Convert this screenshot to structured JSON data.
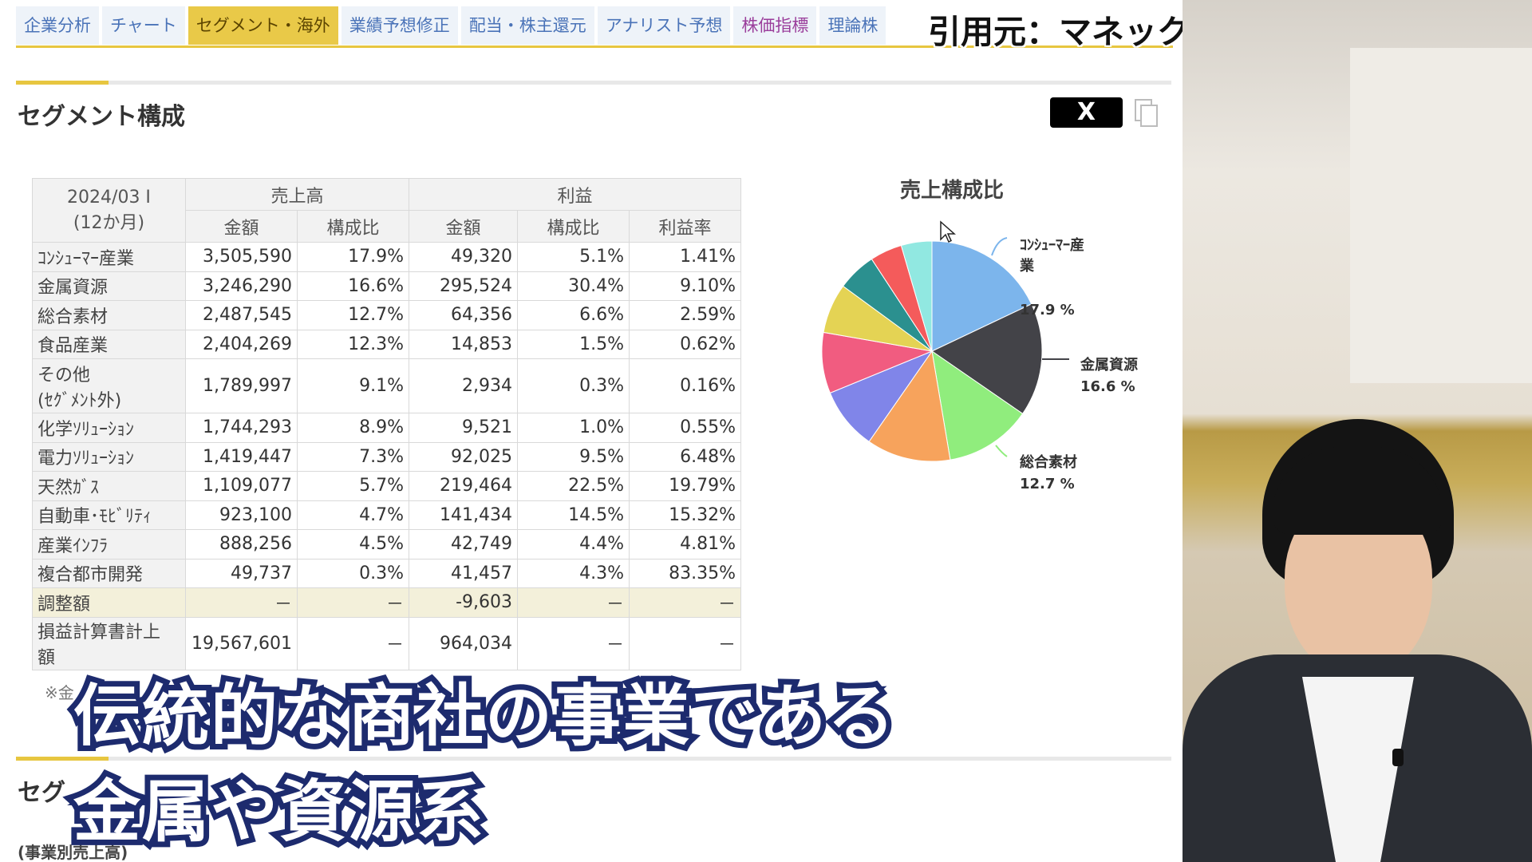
{
  "tabs": [
    {
      "label": "企業分析",
      "active": false
    },
    {
      "label": "チャート",
      "active": false
    },
    {
      "label": "セグメント・海外",
      "active": true
    },
    {
      "label": "業績予想修正",
      "active": false
    },
    {
      "label": "配当・株主還元",
      "active": false
    },
    {
      "label": "アナリスト予想",
      "active": false
    },
    {
      "label": "株価指標",
      "active": false
    },
    {
      "label": "理論株",
      "active": false
    }
  ],
  "source_credit": "引用元：マネックス証券（monex.co.jp）",
  "section": {
    "title": "セグメント構成",
    "share_label": "X",
    "copy_icon": "copy-icon"
  },
  "table": {
    "period_line1": "2024/03 I",
    "period_line2": "(12か月)",
    "group_sales": "売上高",
    "group_profit": "利益",
    "col_amount": "金額",
    "col_ratio": "構成比",
    "col_margin": "利益率",
    "rows": [
      {
        "name": "ｺﾝｼｭｰﾏｰ産業",
        "sales": "3,505,590",
        "sales_ratio": "17.9%",
        "profit": "49,320",
        "profit_ratio": "5.1%",
        "margin": "1.41%"
      },
      {
        "name": "金属資源",
        "sales": "3,246,290",
        "sales_ratio": "16.6%",
        "profit": "295,524",
        "profit_ratio": "30.4%",
        "margin": "9.10%"
      },
      {
        "name": "総合素材",
        "sales": "2,487,545",
        "sales_ratio": "12.7%",
        "profit": "64,356",
        "profit_ratio": "6.6%",
        "margin": "2.59%"
      },
      {
        "name": "食品産業",
        "sales": "2,404,269",
        "sales_ratio": "12.3%",
        "profit": "14,853",
        "profit_ratio": "1.5%",
        "margin": "0.62%"
      },
      {
        "name": "その他",
        "name2": "(ｾｸﾞﾒﾝﾄ外)",
        "sales": "1,789,997",
        "sales_ratio": "9.1%",
        "profit": "2,934",
        "profit_ratio": "0.3%",
        "margin": "0.16%"
      },
      {
        "name": "化学ｿﾘｭｰｼｮﾝ",
        "sales": "1,744,293",
        "sales_ratio": "8.9%",
        "profit": "9,521",
        "profit_ratio": "1.0%",
        "margin": "0.55%"
      },
      {
        "name": "電力ｿﾘｭｰｼｮﾝ",
        "sales": "1,419,447",
        "sales_ratio": "7.3%",
        "profit": "92,025",
        "profit_ratio": "9.5%",
        "margin": "6.48%"
      },
      {
        "name": "天然ｶﾞｽ",
        "sales": "1,109,077",
        "sales_ratio": "5.7%",
        "profit": "219,464",
        "profit_ratio": "22.5%",
        "margin": "19.79%"
      },
      {
        "name": "自動車･ﾓﾋﾞﾘﾃｨ",
        "sales": "923,100",
        "sales_ratio": "4.7%",
        "profit": "141,434",
        "profit_ratio": "14.5%",
        "margin": "15.32%"
      },
      {
        "name": "産業ｲﾝﾌﾗ",
        "sales": "888,256",
        "sales_ratio": "4.5%",
        "profit": "42,749",
        "profit_ratio": "4.4%",
        "margin": "4.81%"
      },
      {
        "name": "複合都市開発",
        "sales": "49,737",
        "sales_ratio": "0.3%",
        "profit": "41,457",
        "profit_ratio": "4.3%",
        "margin": "83.35%"
      },
      {
        "name": "調整額",
        "sales": "－",
        "sales_ratio": "－",
        "profit": "-9,603",
        "profit_ratio": "－",
        "margin": "－"
      },
      {
        "name": "損益計算書計上",
        "name2": "額",
        "sales": "19,567,601",
        "sales_ratio": "－",
        "profit": "964,034",
        "profit_ratio": "－",
        "margin": "－"
      }
    ],
    "note_fragment": "※金"
  },
  "pie": {
    "title": "売上構成比",
    "labels": [
      {
        "name_line1": "ｺﾝｼｭｰﾏｰ産",
        "name_line2": "業",
        "value": "17.9 %"
      },
      {
        "name_line1": "金属資源",
        "value": "16.6 %"
      },
      {
        "name_line1": "総合素材",
        "value": "12.7 %"
      }
    ]
  },
  "chart_data": {
    "type": "pie",
    "title": "売上構成比",
    "categories": [
      "ｺﾝｼｭｰﾏｰ産業",
      "金属資源",
      "総合素材",
      "食品産業",
      "その他(ｾｸﾞﾒﾝﾄ外)",
      "化学ｿﾘｭｰｼｮﾝ",
      "電力ｿﾘｭｰｼｮﾝ",
      "天然ｶﾞｽ",
      "自動車･ﾓﾋﾞﾘﾃｨ",
      "産業ｲﾝﾌﾗ"
    ],
    "values": [
      17.9,
      16.6,
      12.7,
      12.3,
      9.1,
      8.9,
      7.3,
      5.7,
      4.7,
      4.5
    ],
    "colors": [
      "#7cb5ec",
      "#434348",
      "#90ed7d",
      "#f7a35c",
      "#8085e9",
      "#f15c80",
      "#e4d354",
      "#2b908f",
      "#f45b5b",
      "#91e8e1"
    ]
  },
  "lower_section": {
    "title": "セグ",
    "note": "(事業別売上高)"
  },
  "captions": {
    "line1": "伝統的な商社の事業である",
    "line2": "金属や資源系"
  }
}
